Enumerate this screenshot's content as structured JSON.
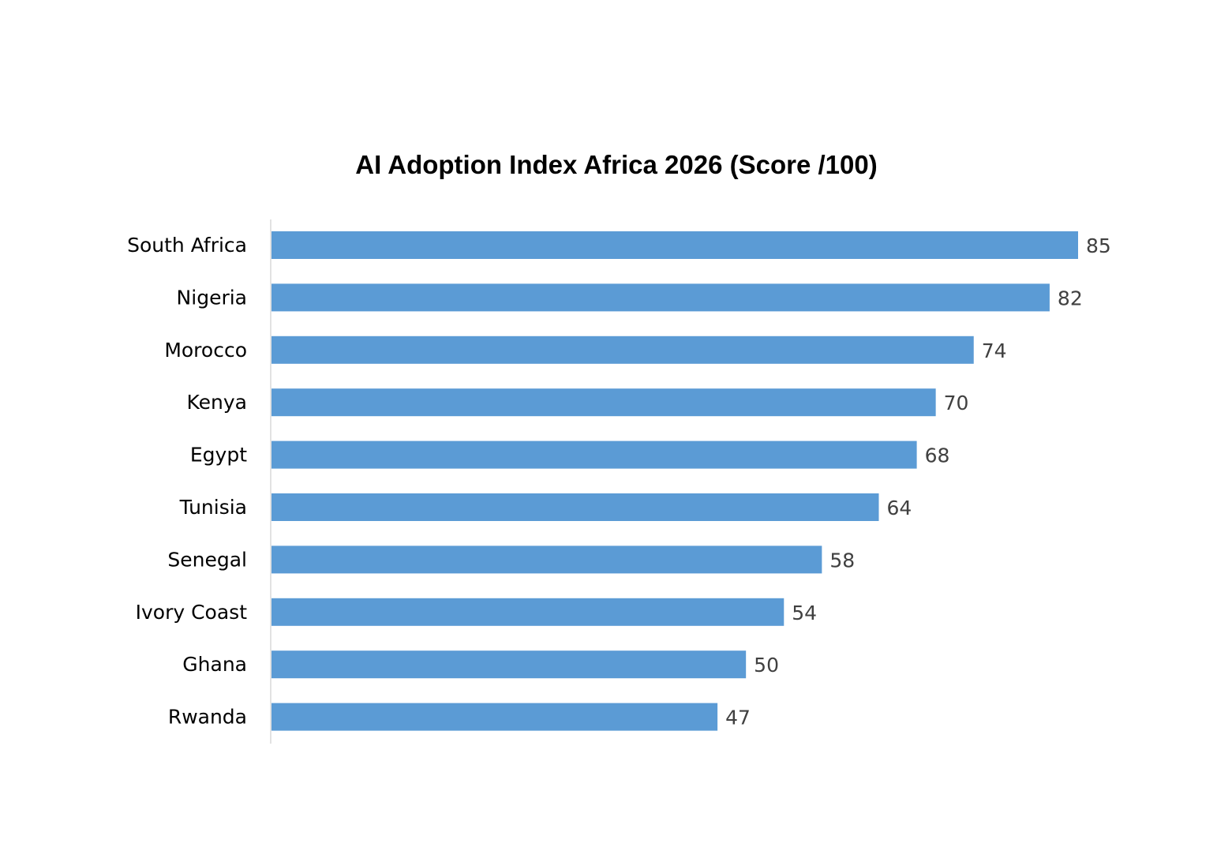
{
  "chart_data": {
    "type": "bar",
    "orientation": "horizontal",
    "title": "AI Adoption Index Africa 2026 (Score /100)",
    "xlabel": "",
    "ylabel": "",
    "categories": [
      "South Africa",
      "Nigeria",
      "Morocco",
      "Kenya",
      "Egypt",
      "Tunisia",
      "Senegal",
      "Ivory Coast",
      "Ghana",
      "Rwanda"
    ],
    "values": [
      85,
      82,
      74,
      70,
      68,
      64,
      58,
      54,
      50,
      47
    ],
    "data_labels": [
      "85",
      "82",
      "74",
      "70",
      "68",
      "64",
      "58",
      "54",
      "50",
      "47"
    ],
    "xlim": [
      0,
      85
    ],
    "grid": false,
    "legend": "none",
    "bar_color": "#5b9bd5",
    "axis_color": "#d9d9d9"
  }
}
